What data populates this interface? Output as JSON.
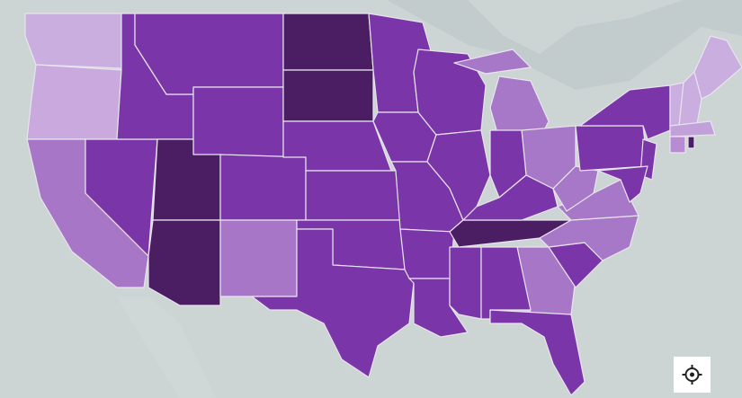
{
  "map": {
    "fills": [
      "#c9aedf",
      "#c9a9de",
      "#a776c7",
      "#7a36a9",
      "#7a36a9",
      "#7a36a9",
      "#7a36a9",
      "#4b1d62",
      "#4b1d62",
      "#7a36a9",
      "#a776c7",
      "#4b1d62",
      "#4b1d62",
      "#7a36a9",
      "#7a36a9",
      "#7a36a9",
      "#7a36a9",
      "#7a36a9",
      "#7a36a9",
      "#7a36a9",
      "#7a36a9",
      "#7a36a9",
      "#7a36a9",
      "#7a36a9",
      "#a878c8",
      "#a878c8",
      "#a878c8",
      "#7a36a9",
      "#4b1d62",
      "#7a36a9",
      "#7a36a9",
      "#a776c7",
      "#7a36a9",
      "#7a36a9",
      "#7a36a9",
      "#a878c8",
      "#a878c8",
      "#a878c8",
      "#7a36a9",
      "#7a36a9",
      "#7a36a9",
      "#7a36a9",
      "#c9aedf",
      "#c9aedf",
      "#c9aedf",
      "#c2a0da",
      "#b78cd2",
      "#4b1d62"
    ]
  }
}
